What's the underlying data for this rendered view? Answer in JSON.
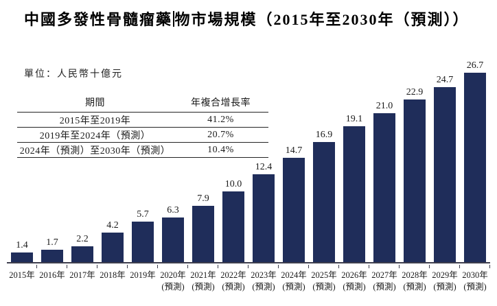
{
  "title": {
    "part1": "中國多發性骨髓瘤藥",
    "part2": "物市場規模（2015年至2030年（預測））"
  },
  "unit_label": "單位：人民幣十億元",
  "cagr_table": {
    "headers": [
      "期間",
      "年複合增長率"
    ],
    "rows": [
      {
        "period": "2015年至2019年",
        "cagr": "41.2%"
      },
      {
        "period": "2019年至2024年（預測）",
        "cagr": "20.7%"
      },
      {
        "period": "2024年（預測）至2030年（預測）",
        "cagr": "10.4%"
      }
    ]
  },
  "chart_data": {
    "type": "bar",
    "title": "中國多發性骨髓瘤藥物市場規模（2015年至2030年（預測））",
    "unit": "人民幣十億元",
    "categories": [
      "2015年",
      "2016年",
      "2017年",
      "2018年",
      "2019年",
      "2020年",
      "2021年",
      "2022年",
      "2023年",
      "2024年",
      "2025年",
      "2026年",
      "2027年",
      "2028年",
      "2029年",
      "2030年"
    ],
    "category_sublabels": [
      "",
      "",
      "",
      "",
      "",
      "(預測)",
      "(預測)",
      "(預測)",
      "(預測)",
      "(預測)",
      "(預測)",
      "(預測)",
      "(預測)",
      "(預測)",
      "(預測)",
      "(預測)"
    ],
    "values": [
      1.4,
      1.7,
      2.2,
      4.2,
      5.7,
      6.3,
      7.9,
      10.0,
      12.4,
      14.7,
      16.9,
      19.1,
      21.0,
      22.9,
      24.7,
      26.7
    ],
    "bar_color": "#1f2d5a",
    "value_label_color": "#1a1a1a",
    "axis_color": "#3d3d4d",
    "ylim": [
      0,
      29
    ],
    "grid": false,
    "legend": false,
    "value_labels_shown": true
  }
}
